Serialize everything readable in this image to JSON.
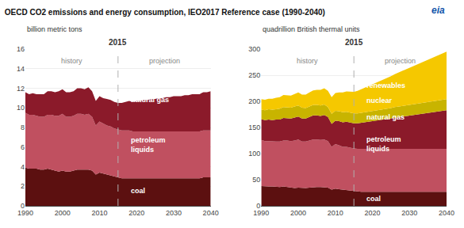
{
  "chart_data": [
    {
      "type": "area",
      "stacked": true,
      "title": "OECD CO2 emissions and energy consumption, IEO2017 Reference case (1990-2040)",
      "ylabel": "billion metric tons",
      "x": [
        1990,
        1991,
        1992,
        1993,
        1994,
        1995,
        1996,
        1997,
        1998,
        1999,
        2000,
        2001,
        2002,
        2003,
        2004,
        2005,
        2006,
        2007,
        2008,
        2009,
        2010,
        2011,
        2012,
        2013,
        2014,
        2015,
        2016,
        2017,
        2018,
        2019,
        2020,
        2021,
        2022,
        2023,
        2024,
        2025,
        2026,
        2027,
        2028,
        2029,
        2030,
        2031,
        2032,
        2033,
        2034,
        2035,
        2036,
        2037,
        2038,
        2039,
        2040
      ],
      "series": [
        {
          "color": "#5c1010",
          "values": [
            3.9,
            3.8,
            3.8,
            3.8,
            3.7,
            3.7,
            3.8,
            3.7,
            3.6,
            3.5,
            3.6,
            3.5,
            3.5,
            3.6,
            3.7,
            3.7,
            3.7,
            3.7,
            3.6,
            3.2,
            3.4,
            3.3,
            3.2,
            3.1,
            3.0,
            2.9,
            2.8,
            2.8,
            2.8,
            2.8,
            2.8,
            2.8,
            2.8,
            2.8,
            2.8,
            2.8,
            2.8,
            2.8,
            2.8,
            2.8,
            2.8,
            2.8,
            2.8,
            2.8,
            2.8,
            2.8,
            2.8,
            2.8,
            2.9,
            2.9,
            2.9
          ]
        },
        {
          "color": "#c05060",
          "values": [
            5.6,
            5.5,
            5.5,
            5.4,
            5.4,
            5.4,
            5.5,
            5.6,
            5.6,
            5.7,
            5.8,
            5.6,
            5.6,
            5.6,
            5.7,
            5.7,
            5.6,
            5.7,
            5.5,
            5.0,
            5.2,
            5.1,
            5.0,
            5.0,
            4.9,
            4.9,
            4.9,
            4.9,
            4.9,
            4.8,
            4.8,
            4.8,
            4.8,
            4.8,
            4.8,
            4.8,
            4.8,
            4.8,
            4.8,
            4.8,
            4.8,
            4.8,
            4.8,
            4.8,
            4.8,
            4.8,
            4.8,
            4.8,
            4.8,
            4.8,
            4.8
          ]
        },
        {
          "color": "#8b1a2a",
          "values": [
            2.1,
            2.1,
            2.2,
            2.2,
            2.3,
            2.3,
            2.4,
            2.4,
            2.4,
            2.5,
            2.5,
            2.5,
            2.5,
            2.5,
            2.6,
            2.6,
            2.6,
            2.7,
            2.6,
            2.5,
            2.6,
            2.6,
            2.7,
            2.7,
            2.7,
            2.7,
            2.8,
            2.9,
            3.0,
            3.0,
            3.1,
            3.1,
            3.2,
            3.2,
            3.3,
            3.3,
            3.4,
            3.4,
            3.5,
            3.5,
            3.6,
            3.6,
            3.6,
            3.7,
            3.7,
            3.8,
            3.8,
            3.8,
            3.9,
            3.9,
            4.0
          ]
        }
      ],
      "xlim": [
        1990,
        2040
      ],
      "ylim": [
        0,
        16
      ],
      "xticks": [
        1990,
        2000,
        2010,
        2020,
        2030,
        2040
      ],
      "yticks": [
        0,
        2,
        4,
        6,
        8,
        10,
        12,
        14,
        16
      ],
      "grid": true,
      "annotations": [
        {
          "text": "eia",
          "color": "#1155aa"
        },
        {
          "text": "2015",
          "x": 2015,
          "color": "#333333"
        },
        {
          "text": "history",
          "x": 2002.5,
          "y": 15.36,
          "color": "#888888"
        },
        {
          "text": "projection",
          "x": 2027.5,
          "y": 15.36,
          "color": "#888888"
        },
        {
          "text": "coal",
          "x": 2018,
          "y": 1.5,
          "color": "#ffffff"
        },
        {
          "text": "petroleum\nliquids",
          "x": 2018,
          "y": 6.2,
          "color": "#ffffff"
        },
        {
          "text": "natural gas",
          "x": 2018,
          "y": 10.8,
          "color": "#ffffff"
        }
      ]
    },
    {
      "type": "area",
      "stacked": true,
      "ylabel": "quadrillion British thermal units",
      "x": [
        1990,
        1991,
        1992,
        1993,
        1994,
        1995,
        1996,
        1997,
        1998,
        1999,
        2000,
        2001,
        2002,
        2003,
        2004,
        2005,
        2006,
        2007,
        2008,
        2009,
        2010,
        2011,
        2012,
        2013,
        2014,
        2015,
        2016,
        2017,
        2018,
        2019,
        2020,
        2021,
        2022,
        2023,
        2024,
        2025,
        2026,
        2027,
        2028,
        2029,
        2030,
        2031,
        2032,
        2033,
        2034,
        2035,
        2036,
        2037,
        2038,
        2039,
        2040
      ],
      "series": [
        {
          "color": "#5c1010",
          "values": [
            38,
            37,
            37,
            37,
            36,
            36,
            37,
            36,
            35,
            34,
            35,
            34,
            34,
            35,
            36,
            36,
            36,
            36,
            35,
            31,
            33,
            32,
            31,
            30,
            29,
            28,
            27,
            27,
            27,
            27,
            27,
            27,
            27,
            27,
            27,
            27,
            27,
            27,
            27,
            27,
            27,
            27,
            27,
            27,
            27,
            27,
            27,
            27,
            27,
            27,
            27
          ]
        },
        {
          "color": "#c05060",
          "values": [
            88,
            87,
            87,
            86,
            87,
            87,
            88,
            89,
            89,
            91,
            92,
            89,
            89,
            90,
            91,
            91,
            90,
            91,
            89,
            82,
            85,
            84,
            82,
            83,
            82,
            82,
            82,
            82,
            82,
            82,
            82,
            82,
            82,
            82,
            82,
            82,
            82,
            82,
            82,
            82,
            82,
            82,
            82,
            82,
            82,
            82,
            82,
            82,
            82,
            82,
            82
          ]
        },
        {
          "color": "#8b1a2a",
          "values": [
            40,
            40,
            41,
            41,
            42,
            42,
            43,
            43,
            43,
            44,
            44,
            44,
            44,
            45,
            46,
            46,
            46,
            47,
            46,
            44,
            45,
            46,
            47,
            48,
            48,
            48,
            49,
            50,
            52,
            53,
            54,
            55,
            56,
            57,
            58,
            59,
            60,
            61,
            62,
            63,
            64,
            65,
            66,
            67,
            68,
            69,
            70,
            71,
            72,
            73,
            74
          ]
        },
        {
          "color": "#c8b400",
          "values": [
            18,
            19,
            20,
            20,
            20,
            21,
            21,
            21,
            21,
            21,
            21,
            21,
            20,
            20,
            20,
            20,
            20,
            20,
            19,
            19,
            19,
            19,
            19,
            19,
            19,
            19,
            19,
            19,
            19,
            19,
            19,
            19,
            19,
            19,
            19,
            19,
            20,
            20,
            20,
            20,
            20,
            20,
            20,
            20,
            20,
            21,
            21,
            21,
            21,
            21,
            21
          ]
        },
        {
          "color": "#f5c800",
          "values": [
            20,
            20,
            20,
            21,
            22,
            22,
            23,
            23,
            23,
            24,
            25,
            25,
            26,
            27,
            28,
            29,
            30,
            31,
            31,
            32,
            34,
            36,
            38,
            39,
            40,
            41,
            43,
            45,
            47,
            49,
            51,
            53,
            55,
            57,
            59,
            61,
            63,
            65,
            67,
            69,
            71,
            73,
            75,
            77,
            79,
            81,
            83,
            85,
            87,
            89,
            91
          ]
        }
      ],
      "xlim": [
        1990,
        2040
      ],
      "ylim": [
        0,
        300
      ],
      "xticks": [
        1990,
        2000,
        2010,
        2020,
        2030,
        2040
      ],
      "yticks": [
        0,
        50,
        100,
        150,
        200,
        250,
        300
      ],
      "grid": true,
      "annotations": [
        {
          "text": "2015",
          "x": 2015,
          "color": "#333333"
        },
        {
          "text": "history",
          "x": 2002.5,
          "y": 288,
          "color": "#888888"
        },
        {
          "text": "projection",
          "x": 2027.5,
          "y": 288,
          "color": "#888888"
        },
        {
          "text": "coal",
          "x": 2018,
          "y": 14,
          "color": "#ffffff"
        },
        {
          "text": "petroleum\nliquids",
          "x": 2018,
          "y": 118,
          "color": "#ffffff"
        },
        {
          "text": "natural gas",
          "x": 2018,
          "y": 170,
          "color": "#ffffff"
        },
        {
          "text": "nuclear",
          "x": 2018,
          "y": 202,
          "color": "#ffffff"
        },
        {
          "text": "renewables",
          "x": 2018,
          "y": 230,
          "color": "#ffffff"
        }
      ]
    }
  ]
}
